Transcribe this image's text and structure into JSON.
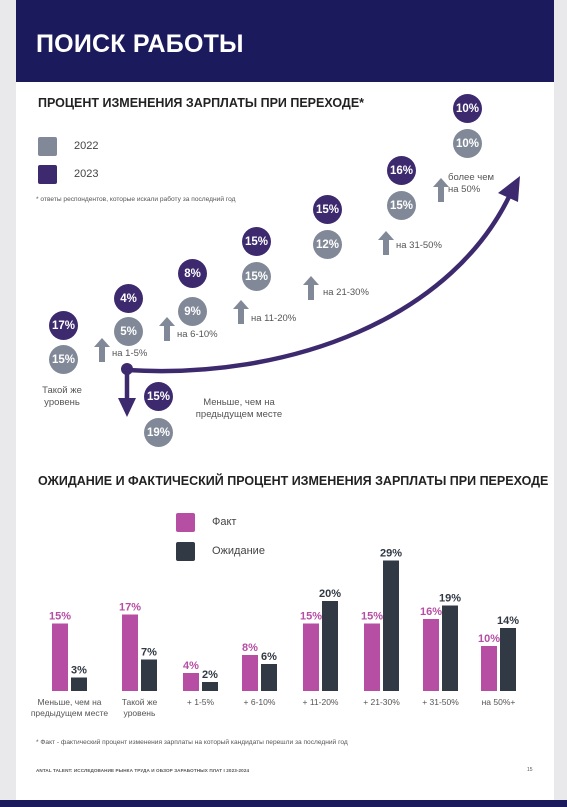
{
  "page_title": "ПОИСК РАБОТЫ",
  "section1": {
    "title": "ПРОЦЕНТ ИЗМЕНЕНИЯ ЗАРПЛАТЫ ПРИ ПЕРЕХОДЕ*",
    "legend": [
      {
        "label": "2022",
        "color": "#818998"
      },
      {
        "label": "2023",
        "color": "#3d2a6e"
      }
    ],
    "note": "* ответы респондентов, которые искали работу за последний год",
    "steps": [
      {
        "label": "Меньше, чем на предыдущем месте",
        "v2022": "19%",
        "v2023": "15%"
      },
      {
        "label": "Такой же уровень",
        "v2022": "15%",
        "v2023": "17%"
      },
      {
        "label": "на 1-5%",
        "v2022": "5%",
        "v2023": "4%"
      },
      {
        "label": "на 6-10%",
        "v2022": "9%",
        "v2023": "8%"
      },
      {
        "label": "на 11-20%",
        "v2022": "15%",
        "v2023": "15%"
      },
      {
        "label": "на 21-30%",
        "v2022": "12%",
        "v2023": "15%"
      },
      {
        "label": "на 31-50%",
        "v2022": "15%",
        "v2023": "16%"
      },
      {
        "label": "более чем на 50%",
        "v2022": "10%",
        "v2023": "10%"
      }
    ]
  },
  "section2": {
    "title": "ОЖИДАНИЕ И ФАКТИЧЕСКИЙ ПРОЦЕНТ ИЗМЕНЕНИЯ ЗАРПЛАТЫ ПРИ ПЕРЕХОДЕ",
    "legend": [
      {
        "label": "Факт",
        "color": "#b64ea4"
      },
      {
        "label": "Ожидание",
        "color": "#313944"
      }
    ],
    "note": "* Факт - фактический процент изменения зарплаты на который кандидаты перешли за последний год"
  },
  "chart_data": [
    {
      "type": "bar",
      "title": "ОЖИДАНИЕ И ФАКТИЧЕСКИЙ ПРОЦЕНТ ИЗМЕНЕНИЯ ЗАРПЛАТЫ ПРИ ПЕРЕХОДЕ",
      "categories": [
        "Меньше, чем на предыдущем месте",
        "Такой же уровень",
        "+ 1-5%",
        "+ 6-10%",
        "+ 11-20%",
        "+ 21-30%",
        "+ 31-50%",
        "на 50%+"
      ],
      "series": [
        {
          "name": "Факт",
          "color": "#b64ea4",
          "values": [
            15,
            17,
            4,
            8,
            15,
            15,
            16,
            10
          ]
        },
        {
          "name": "Ожидание",
          "color": "#313944",
          "values": [
            3,
            7,
            2,
            6,
            20,
            29,
            19,
            14
          ]
        }
      ],
      "value_labels": true,
      "ylim": [
        0,
        30
      ],
      "grid": false,
      "legend_position": "top-left"
    }
  ],
  "footer": {
    "left": "ANTAL TALENT: ИССЛЕДОВАНИЕ РЫНКА ТРУДА И ОБЗОР ЗАРАБОТНЫХ ПЛАТ I 2023-2024",
    "page_number": "15"
  }
}
